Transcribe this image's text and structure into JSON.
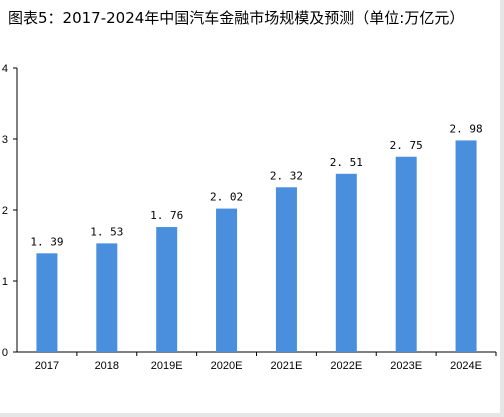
{
  "chart_data": {
    "type": "bar",
    "title": "图表5：2017-2024年中国汽车金融市场规模及预测（单位:万亿元）",
    "categories": [
      "2017",
      "2018",
      "2019E",
      "2020E",
      "2021E",
      "2022E",
      "2023E",
      "2024E"
    ],
    "values": [
      1.39,
      1.53,
      1.76,
      2.02,
      2.32,
      2.51,
      2.75,
      2.98
    ],
    "value_labels": [
      "1. 39",
      "1. 53",
      "1. 76",
      "2. 02",
      "2. 32",
      "2. 51",
      "2. 75",
      "2. 98"
    ],
    "yticks": [
      "0",
      "1",
      "2",
      "3",
      "4"
    ],
    "ylim": [
      0,
      4
    ],
    "xlabel": "",
    "ylabel": "",
    "grid": false,
    "bar_color": "#4a8ede"
  }
}
